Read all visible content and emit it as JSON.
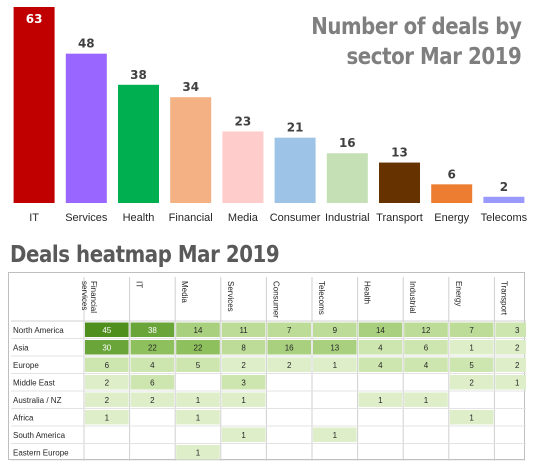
{
  "chart_data": [
    {
      "type": "bar",
      "title_lines": [
        "Number of deals by",
        "sector Mar 2019"
      ],
      "categories": [
        "IT",
        "Services",
        "Health",
        "Financial",
        "Media",
        "Consumer",
        "Industrial",
        "Transport",
        "Energy",
        "Telecoms"
      ],
      "values": [
        63,
        48,
        38,
        34,
        23,
        21,
        16,
        13,
        6,
        2
      ],
      "colors": [
        "#c00000",
        "#9966ff",
        "#00b050",
        "#f4b183",
        "#ffcccc",
        "#9dc3e6",
        "#c5e0b4",
        "#663300",
        "#ed7d31",
        "#9999ff"
      ],
      "ylim": [
        0,
        63
      ],
      "grid": false,
      "legend": "none"
    },
    {
      "type": "heatmap",
      "title": "Deals heatmap Mar 2019",
      "columns": [
        "Financial services",
        "IT",
        "Media",
        "Services",
        "Consumer",
        "Telecoms",
        "Health",
        "Industrial",
        "Energy",
        "Transport"
      ],
      "rows": [
        "North America",
        "Asia",
        "Europe",
        "Middle East",
        "Australia / NZ",
        "Africa",
        "South America",
        "Eastern Europe"
      ],
      "values": [
        [
          45,
          38,
          14,
          11,
          7,
          9,
          14,
          12,
          7,
          3
        ],
        [
          30,
          22,
          22,
          8,
          16,
          13,
          4,
          6,
          1,
          2
        ],
        [
          6,
          4,
          5,
          2,
          2,
          1,
          4,
          4,
          5,
          2
        ],
        [
          2,
          6,
          null,
          3,
          null,
          null,
          null,
          null,
          2,
          1
        ],
        [
          2,
          2,
          1,
          1,
          null,
          null,
          1,
          1,
          null,
          null
        ],
        [
          1,
          null,
          1,
          null,
          null,
          null,
          null,
          null,
          1,
          null
        ],
        [
          null,
          null,
          null,
          1,
          null,
          1,
          null,
          null,
          null,
          null
        ],
        [
          null,
          null,
          1,
          null,
          null,
          null,
          null,
          null,
          null,
          null
        ]
      ]
    }
  ]
}
